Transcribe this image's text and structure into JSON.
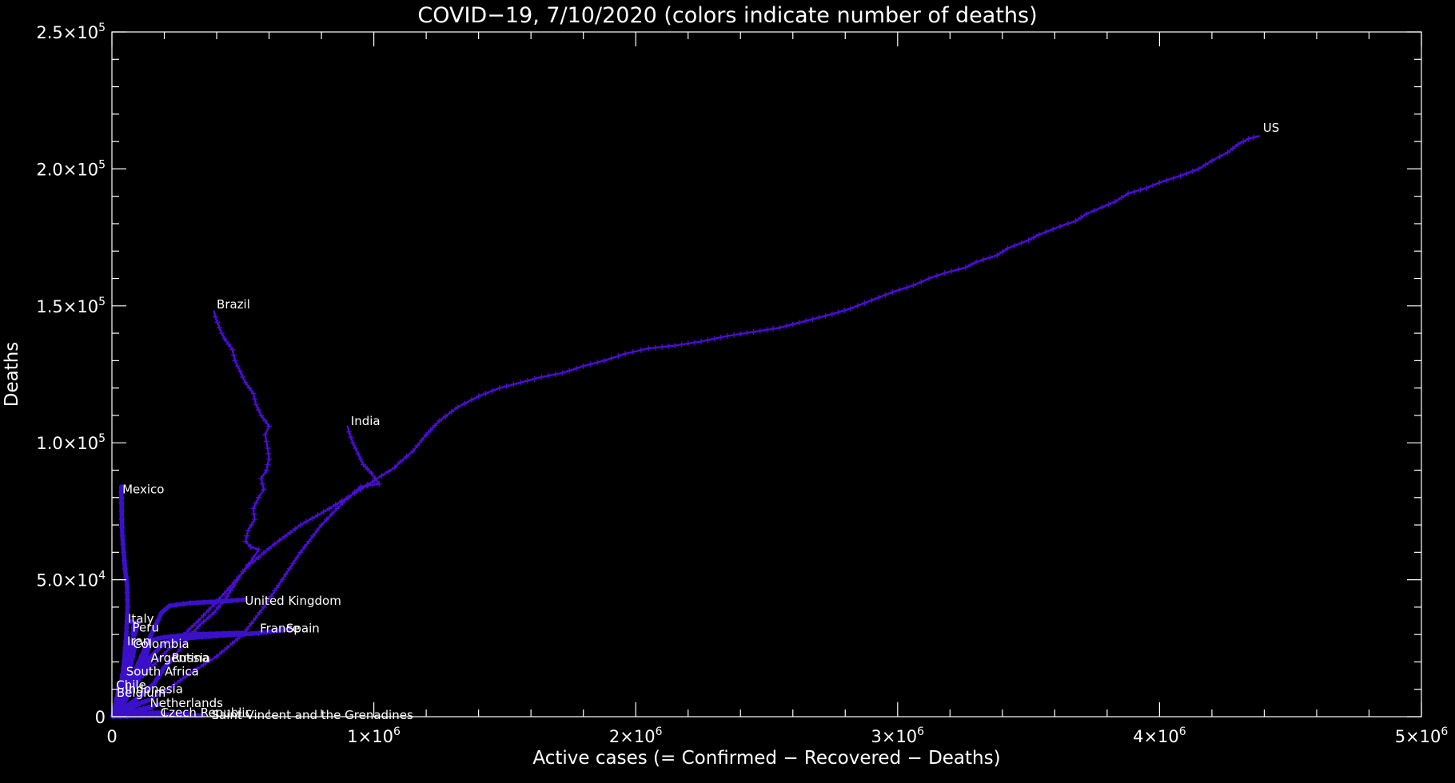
{
  "chart_data": {
    "type": "line",
    "title": "COVID−19, 7/10/2020 (colors indicate number of deaths)",
    "xlabel": "Active cases (= Confirmed − Recovered − Deaths)",
    "ylabel": "Deaths",
    "xlim": [
      0,
      5000000
    ],
    "ylim": [
      0,
      250000
    ],
    "x_ticks": [
      0,
      1000000,
      2000000,
      3000000,
      4000000,
      5000000
    ],
    "x_tick_labels": [
      {
        "base": "0",
        "exp": ""
      },
      {
        "base": "1×10",
        "exp": "6"
      },
      {
        "base": "2×10",
        "exp": "6"
      },
      {
        "base": "3×10",
        "exp": "6"
      },
      {
        "base": "4×10",
        "exp": "6"
      },
      {
        "base": "5×10",
        "exp": "6"
      }
    ],
    "y_ticks": [
      0,
      50000,
      100000,
      150000,
      200000,
      250000
    ],
    "y_tick_labels": [
      {
        "base": "0",
        "exp": ""
      },
      {
        "base": "5.0×10",
        "exp": "4"
      },
      {
        "base": "1.0×10",
        "exp": "5"
      },
      {
        "base": "1.5×10",
        "exp": "5"
      },
      {
        "base": "2.0×10",
        "exp": "5"
      },
      {
        "base": "2.5×10",
        "exp": "5"
      }
    ],
    "x_minor_per_major": 5,
    "y_minor_per_major": 5,
    "grid": false,
    "colors": {
      "background": "#000000",
      "axes": "#ffffff",
      "track": "#4a0ed0",
      "track_dense": "#3a10c8"
    },
    "series": [
      {
        "name": "US",
        "points": [
          [
            45000,
            8000
          ],
          [
            120000,
            15000
          ],
          [
            220000,
            25000
          ],
          [
            330000,
            35000
          ],
          [
            430000,
            45000
          ],
          [
            520000,
            55000
          ],
          [
            620000,
            63000
          ],
          [
            720000,
            70000
          ],
          [
            830000,
            76000
          ],
          [
            950000,
            83000
          ],
          [
            1030000,
            88000
          ],
          [
            1080000,
            91000
          ],
          [
            1100000,
            93000
          ],
          [
            1150000,
            97000
          ],
          [
            1200000,
            103000
          ],
          [
            1250000,
            108000
          ],
          [
            1320000,
            113000
          ],
          [
            1400000,
            117000
          ],
          [
            1480000,
            120000
          ],
          [
            1560000,
            122000
          ],
          [
            1640000,
            124000
          ],
          [
            1720000,
            125500
          ],
          [
            1800000,
            128000
          ],
          [
            1880000,
            130000
          ],
          [
            1960000,
            132500
          ],
          [
            2050000,
            134500
          ],
          [
            2150000,
            135500
          ],
          [
            2250000,
            137000
          ],
          [
            2350000,
            139000
          ],
          [
            2450000,
            140500
          ],
          [
            2550000,
            142000
          ],
          [
            2650000,
            144500
          ],
          [
            2750000,
            147000
          ],
          [
            2820000,
            149000
          ],
          [
            2900000,
            152000
          ],
          [
            2980000,
            155000
          ],
          [
            3060000,
            157500
          ],
          [
            3120000,
            160000
          ],
          [
            3180000,
            162000
          ],
          [
            3260000,
            164000
          ],
          [
            3300000,
            166000
          ],
          [
            3380000,
            168500
          ],
          [
            3420000,
            171000
          ],
          [
            3500000,
            174000
          ],
          [
            3540000,
            176000
          ],
          [
            3620000,
            179000
          ],
          [
            3680000,
            181000
          ],
          [
            3720000,
            183500
          ],
          [
            3780000,
            186000
          ],
          [
            3830000,
            188000
          ],
          [
            3880000,
            191000
          ],
          [
            3950000,
            193000
          ],
          [
            4000000,
            195000
          ],
          [
            4080000,
            197500
          ],
          [
            4150000,
            200000
          ],
          [
            4200000,
            203000
          ],
          [
            4260000,
            206000
          ],
          [
            4300000,
            209000
          ],
          [
            4340000,
            211000
          ],
          [
            4380000,
            212000
          ]
        ],
        "label": "US",
        "label_at": [
          4395000,
          215000
        ]
      },
      {
        "name": "Brazil",
        "points": [
          [
            30000,
            1500
          ],
          [
            90000,
            6000
          ],
          [
            160000,
            12000
          ],
          [
            220000,
            20000
          ],
          [
            280000,
            27000
          ],
          [
            330000,
            33000
          ],
          [
            390000,
            38000
          ],
          [
            440000,
            44000
          ],
          [
            480000,
            50000
          ],
          [
            500000,
            53000
          ],
          [
            540000,
            58000
          ],
          [
            560000,
            61000
          ],
          [
            530000,
            62000
          ],
          [
            510000,
            64000
          ],
          [
            520000,
            68000
          ],
          [
            545000,
            72000
          ],
          [
            540000,
            76000
          ],
          [
            560000,
            80000
          ],
          [
            580000,
            83000
          ],
          [
            570000,
            87000
          ],
          [
            590000,
            90000
          ],
          [
            600000,
            94000
          ],
          [
            595000,
            98000
          ],
          [
            585000,
            103000
          ],
          [
            600000,
            106000
          ],
          [
            570000,
            110000
          ],
          [
            550000,
            114000
          ],
          [
            540000,
            118000
          ],
          [
            510000,
            122000
          ],
          [
            490000,
            126000
          ],
          [
            470000,
            130000
          ],
          [
            460000,
            134000
          ],
          [
            430000,
            138000
          ],
          [
            410000,
            142000
          ],
          [
            395000,
            146000
          ],
          [
            390000,
            148000
          ]
        ],
        "label": "Brazil",
        "label_at": [
          400000,
          150500
        ]
      },
      {
        "name": "India",
        "points": [
          [
            20000,
            500
          ],
          [
            100000,
            4000
          ],
          [
            200000,
            9000
          ],
          [
            300000,
            16000
          ],
          [
            400000,
            22000
          ],
          [
            500000,
            30000
          ],
          [
            580000,
            40000
          ],
          [
            650000,
            50000
          ],
          [
            720000,
            60000
          ],
          [
            800000,
            70000
          ],
          [
            880000,
            78000
          ],
          [
            950000,
            84000
          ],
          [
            1020000,
            85000
          ],
          [
            990000,
            89000
          ],
          [
            960000,
            92000
          ],
          [
            940000,
            96000
          ],
          [
            920000,
            100000
          ],
          [
            905000,
            104000
          ],
          [
            900000,
            106000
          ]
        ],
        "label": "India",
        "label_at": [
          912000,
          108000
        ]
      },
      {
        "name": "Mexico",
        "points": [
          [
            15000,
            1000
          ],
          [
            30000,
            8000
          ],
          [
            45000,
            18000
          ],
          [
            55000,
            30000
          ],
          [
            60000,
            40000
          ],
          [
            58000,
            48000
          ],
          [
            50000,
            54000
          ],
          [
            45000,
            60000
          ],
          [
            40000,
            66000
          ],
          [
            38000,
            72000
          ],
          [
            37000,
            78000
          ],
          [
            36000,
            82000
          ],
          [
            36000,
            84000
          ]
        ],
        "label": "Mexico",
        "label_at": [
          40000,
          83000
        ]
      },
      {
        "name": "United Kingdom",
        "points": [
          [
            20000,
            3000
          ],
          [
            80000,
            15000
          ],
          [
            150000,
            30000
          ],
          [
            190000,
            38000
          ],
          [
            220000,
            40500
          ],
          [
            300000,
            41500
          ],
          [
            400000,
            42000
          ],
          [
            480000,
            42500
          ],
          [
            510000,
            42800
          ]
        ],
        "label": "United Kingdom",
        "label_at": [
          508000,
          42300
        ]
      },
      {
        "name": "France",
        "points": [
          [
            20000,
            2000
          ],
          [
            80000,
            12000
          ],
          [
            130000,
            22000
          ],
          [
            150000,
            28000
          ],
          [
            200000,
            29000
          ],
          [
            300000,
            30000
          ],
          [
            400000,
            30300
          ],
          [
            500000,
            30600
          ]
        ],
        "label": "France",
        "label_at": [
          565000,
          32200
        ]
      },
      {
        "name": "Spain",
        "points": [
          [
            20000,
            3000
          ],
          [
            90000,
            14000
          ],
          [
            150000,
            22000
          ],
          [
            200000,
            27000
          ],
          [
            260000,
            28500
          ],
          [
            400000,
            29500
          ],
          [
            560000,
            30500
          ],
          [
            680000,
            32000
          ]
        ],
        "label": "Spain",
        "label_at": [
          665000,
          32200
        ]
      },
      {
        "name": "Italy",
        "points": [
          [
            15000,
            3000
          ],
          [
            50000,
            15000
          ],
          [
            80000,
            28000
          ],
          [
            100000,
            34000
          ],
          [
            60000,
            35000
          ]
        ],
        "label": "Italy",
        "label_at": [
          61000,
          35800
        ]
      },
      {
        "name": "Peru",
        "points": [
          [
            5000,
            500
          ],
          [
            20000,
            5000
          ],
          [
            40000,
            12000
          ],
          [
            60000,
            20000
          ],
          [
            80000,
            28000
          ],
          [
            82000,
            33000
          ]
        ],
        "label": "Peru",
        "label_at": [
          78000,
          32500
        ]
      },
      {
        "name": "Iran",
        "points": [
          [
            8000,
            2000
          ],
          [
            30000,
            10000
          ],
          [
            50000,
            20000
          ],
          [
            60000,
            27000
          ]
        ],
        "label": "Iran",
        "label_at": [
          58000,
          27500
        ]
      },
      {
        "name": "Colombia",
        "points": [
          [
            5000,
            500
          ],
          [
            30000,
            6000
          ],
          [
            60000,
            14000
          ],
          [
            80000,
            22000
          ],
          [
            90000,
            27000
          ]
        ],
        "label": "Colombia",
        "label_at": [
          80000,
          26500
        ]
      },
      {
        "name": "Argentina",
        "points": [
          [
            5000,
            300
          ],
          [
            40000,
            5000
          ],
          [
            90000,
            12000
          ],
          [
            140000,
            19000
          ],
          [
            150000,
            21000
          ]
        ],
        "label": "Argentina",
        "label_at": [
          148000,
          21500
        ]
      },
      {
        "name": "Russia",
        "points": [
          [
            10000,
            500
          ],
          [
            80000,
            5000
          ],
          [
            160000,
            12000
          ],
          [
            200000,
            18000
          ],
          [
            230000,
            21000
          ]
        ],
        "label": "Russia",
        "label_at": [
          228000,
          21500
        ]
      },
      {
        "name": "South Africa",
        "points": [
          [
            5000,
            200
          ],
          [
            30000,
            4000
          ],
          [
            60000,
            10000
          ],
          [
            70000,
            16000
          ]
        ],
        "label": "South Africa",
        "label_at": [
          54000,
          16500
        ]
      },
      {
        "name": "Chile",
        "points": [
          [
            5000,
            500
          ],
          [
            20000,
            5000
          ],
          [
            25000,
            11000
          ]
        ],
        "label": "Chile",
        "label_at": [
          16000,
          11500
        ]
      },
      {
        "name": "Indonesia",
        "points": [
          [
            5000,
            300
          ],
          [
            40000,
            4000
          ],
          [
            70000,
            9000
          ],
          [
            80000,
            10000
          ]
        ],
        "label": "Indonesia",
        "label_at": [
          50000,
          10000
        ]
      },
      {
        "name": "Belgium",
        "points": [
          [
            5000,
            400
          ],
          [
            20000,
            4000
          ],
          [
            30000,
            9000
          ]
        ],
        "label": "Belgium",
        "label_at": [
          18000,
          8700
        ]
      },
      {
        "name": "Netherlands",
        "points": [
          [
            5000,
            300
          ],
          [
            50000,
            3000
          ],
          [
            140000,
            6000
          ]
        ],
        "label": "Netherlands",
        "label_at": [
          145000,
          5000
        ]
      },
      {
        "name": "Czech Republic",
        "points": [
          [
            4000,
            200
          ],
          [
            80000,
            800
          ],
          [
            180000,
            1500
          ]
        ],
        "label": "Czech Republic",
        "label_at": [
          185000,
          1500
        ]
      },
      {
        "name": "Saint Vincent and the Grenadines",
        "points": [
          [
            3000,
            100
          ],
          [
            200000,
            300
          ],
          [
            350000,
            400
          ]
        ],
        "label": "Saint Vincent and the Grenadines",
        "label_at": [
          380000,
          -1200
        ]
      }
    ]
  }
}
